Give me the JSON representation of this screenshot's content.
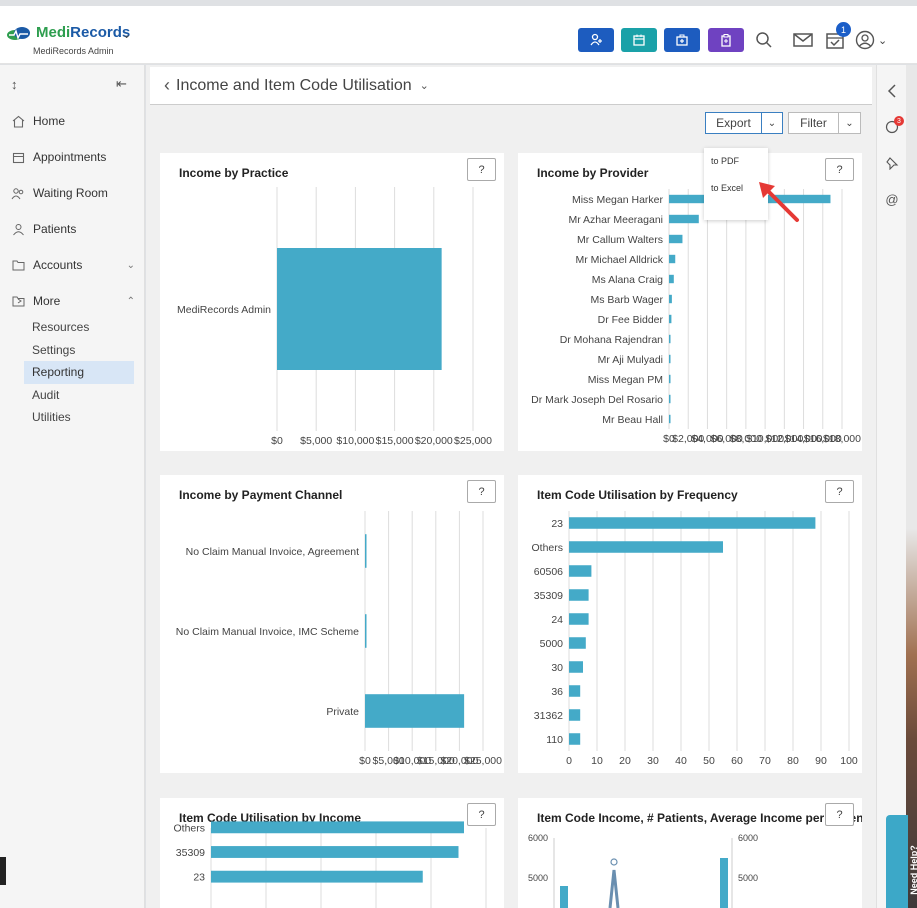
{
  "header": {
    "logo_medi": "Medi",
    "logo_records": "Records",
    "subtitle": "MediRecords Admin",
    "notification_count": "1",
    "quick_buttons": [
      {
        "name": "add-patient",
        "color": "#1d5cbf"
      },
      {
        "name": "calendar",
        "color": "#1aa1a8"
      },
      {
        "name": "medical-bag",
        "color": "#1d5cbf"
      },
      {
        "name": "clipboard",
        "color": "#6f42c1"
      }
    ]
  },
  "sidebar": {
    "items": [
      {
        "label": "Home",
        "icon": "home-icon"
      },
      {
        "label": "Appointments",
        "icon": "calendar-icon"
      },
      {
        "label": "Waiting Room",
        "icon": "people-icon"
      },
      {
        "label": "Patients",
        "icon": "user-icon"
      },
      {
        "label": "Accounts",
        "icon": "folder-icon"
      },
      {
        "label": "More",
        "icon": "folder-share-icon"
      }
    ],
    "sub_items": [
      "Resources",
      "Settings",
      "Reporting",
      "Audit",
      "Utilities"
    ],
    "active_sub": "Reporting"
  },
  "page": {
    "title": "Income and Item Code Utilisation",
    "export_label": "Export",
    "filter_label": "Filter",
    "export_menu": [
      "to PDF",
      "to Excel"
    ],
    "help_label": "?"
  },
  "accent": "#44aac8",
  "charts": {
    "income_by_practice": {
      "title": "Income by Practice",
      "chart_data": {
        "type": "bar",
        "orientation": "horizontal",
        "categories": [
          "MediRecords Admin"
        ],
        "values": [
          21000
        ],
        "ticks": [
          "$0",
          "$5,000",
          "$10,000",
          "$15,000",
          "$20,000",
          "$25,000"
        ],
        "xlim": [
          0,
          25000
        ]
      }
    },
    "income_by_provider": {
      "title": "Income by Provider",
      "chart_data": {
        "type": "bar",
        "orientation": "horizontal",
        "categories": [
          "Miss Megan Harker",
          "Mr Azhar Meeragani",
          "Mr Callum Walters",
          "Mr Michael Alldrick",
          "Ms Alana Craig",
          "Ms Barb Wager",
          "Dr Fee Bidder",
          "Dr Mohana Rajendran",
          "Mr Aji Mulyadi",
          "Miss Megan PM",
          "Dr Mark Joseph Del Rosario",
          "Mr Beau Hall"
        ],
        "values": [
          16800,
          3100,
          1400,
          650,
          500,
          300,
          250,
          150,
          120,
          100,
          80,
          60
        ],
        "ticks": [
          "$0",
          "$2,000",
          "$4,000",
          "$6,000",
          "$8,000",
          "$10,000",
          "$12,000",
          "$14,000",
          "$16,000",
          "$18,000"
        ],
        "xlim": [
          0,
          18000
        ]
      }
    },
    "income_by_payment_channel": {
      "title": "Income by Payment Channel",
      "chart_data": {
        "type": "bar",
        "orientation": "horizontal",
        "categories": [
          "No Claim Manual Invoice, Agreement",
          "No Claim Manual Invoice, IMC Scheme",
          "Private"
        ],
        "values": [
          300,
          300,
          21000
        ],
        "ticks": [
          "$0",
          "$5,000",
          "$10,000",
          "$15,000",
          "$20,000",
          "$25,000"
        ],
        "xlim": [
          0,
          25000
        ]
      }
    },
    "item_code_frequency": {
      "title": "Item Code Utilisation by Frequency",
      "chart_data": {
        "type": "bar",
        "orientation": "horizontal",
        "categories": [
          "23",
          "Others",
          "60506",
          "35309",
          "24",
          "5000",
          "30",
          "36",
          "31362",
          "110"
        ],
        "values": [
          88,
          55,
          8,
          7,
          7,
          6,
          5,
          4,
          4,
          4
        ],
        "ticks": [
          "0",
          "10",
          "20",
          "30",
          "40",
          "50",
          "60",
          "70",
          "80",
          "90",
          "100"
        ],
        "xlim": [
          0,
          100
        ]
      }
    },
    "item_code_income": {
      "title": "Item Code Utilisation by Income",
      "chart_data": {
        "type": "bar",
        "orientation": "horizontal",
        "categories": [
          "Others",
          "35309",
          "23"
        ],
        "values": [
          9200,
          9000,
          7700
        ],
        "xlim": [
          0,
          10000
        ]
      }
    },
    "item_code_income_patients": {
      "title": "Item Code Income, # Patients, Average Income per Patient",
      "chart_data": {
        "type": "bar+line",
        "left_ticks": [
          "6000",
          "5000"
        ],
        "right_ticks": [
          "6000",
          "5000"
        ]
      }
    }
  }
}
